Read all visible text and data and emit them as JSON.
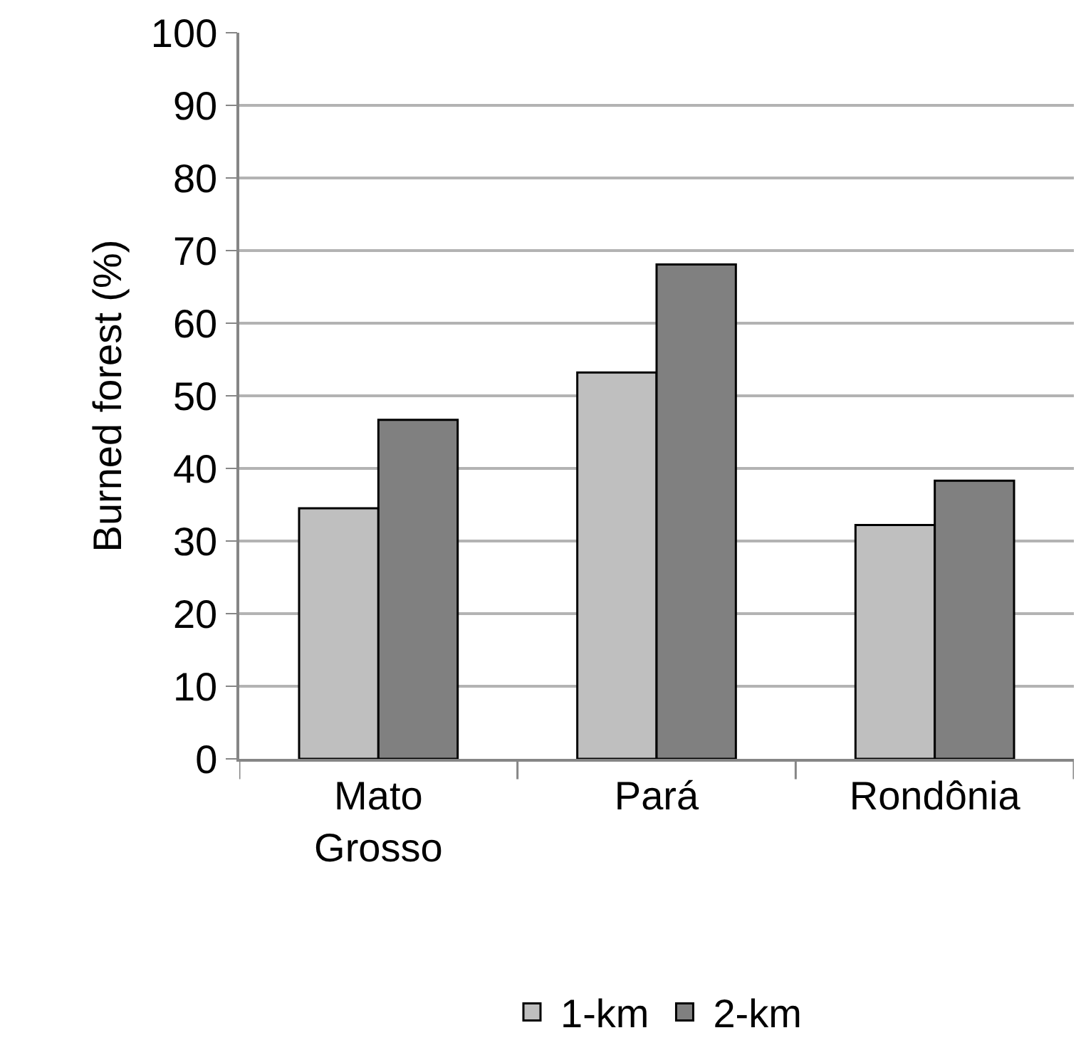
{
  "chart_data": {
    "type": "bar",
    "ylabel": "Burned forest (%)",
    "categories": [
      "Mato Grosso",
      "Pará",
      "Rondônia"
    ],
    "series": [
      {
        "name": "1-km",
        "color": "#bfbfbf",
        "values": [
          34.5,
          53.2,
          32.2
        ]
      },
      {
        "name": "2-km",
        "color": "#808080",
        "values": [
          46.7,
          68.1,
          38.3
        ]
      }
    ],
    "ylim": [
      0,
      100
    ],
    "yticks": [
      0,
      10,
      20,
      30,
      40,
      50,
      60,
      70,
      80,
      90,
      100
    ],
    "grid": "y",
    "legend": "bottom"
  }
}
